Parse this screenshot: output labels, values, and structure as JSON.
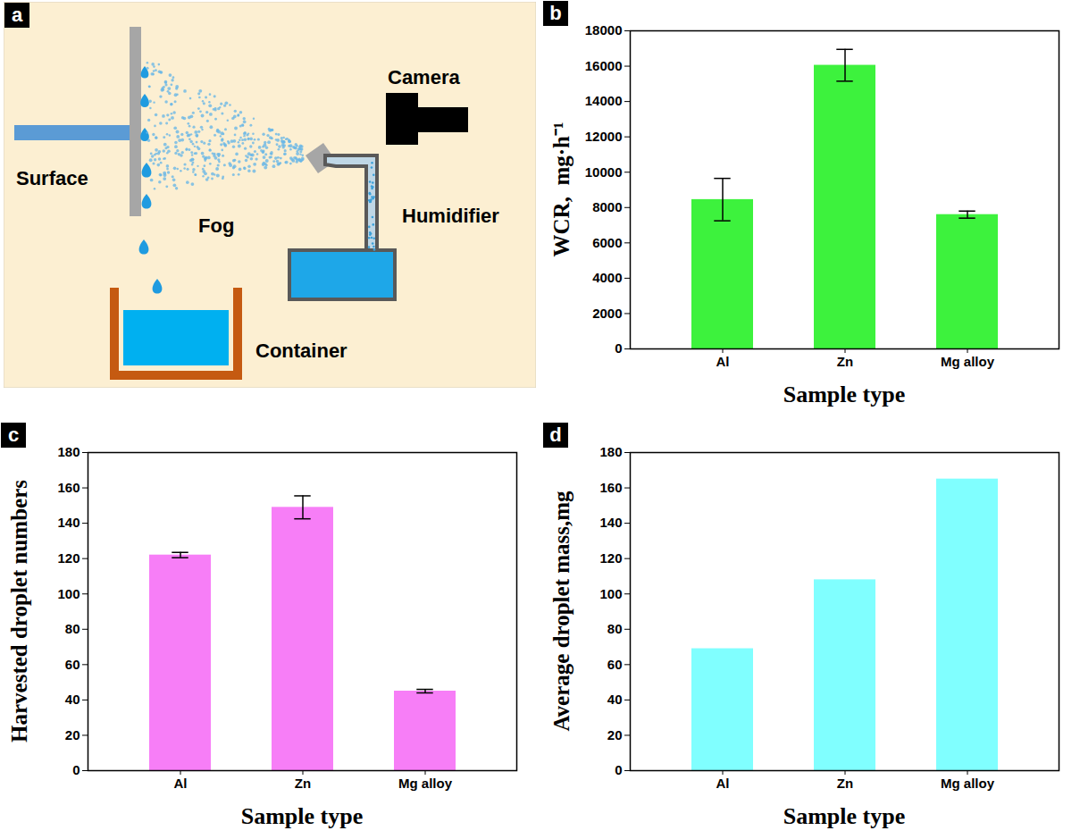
{
  "diagram": {
    "panel": "a",
    "labels": {
      "surface": "Surface",
      "fog": "Fog",
      "camera": "Camera",
      "humidifier": "Humidifier",
      "container": "Container"
    }
  },
  "chart_data": [
    {
      "type": "bar",
      "panel": "b",
      "x_label": "Sample type",
      "y_label": "WCR,  mg·h⁻¹",
      "categories": [
        "Al",
        "Zn",
        "Mg alloy"
      ],
      "values": [
        8450,
        16050,
        7600
      ],
      "errors": [
        1200,
        900,
        200
      ],
      "color": "#3df23d",
      "ylim": [
        0,
        18000
      ],
      "yticks": [
        0,
        2000,
        4000,
        6000,
        8000,
        10000,
        12000,
        14000,
        16000,
        18000
      ],
      "grid": false
    },
    {
      "type": "bar",
      "panel": "c",
      "x_label": "Sample type",
      "y_label": "Harvested droplet numbers",
      "categories": [
        "Al",
        "Zn",
        "Mg alloy"
      ],
      "values": [
        122,
        149,
        45
      ],
      "errors": [
        1.5,
        6.5,
        1
      ],
      "color": "#f77ef7",
      "ylim": [
        0,
        180
      ],
      "yticks": [
        0,
        20,
        40,
        60,
        80,
        100,
        120,
        140,
        160,
        180
      ],
      "grid": false
    },
    {
      "type": "bar",
      "panel": "d",
      "x_label": "Sample type",
      "y_label": "Average droplet mass,mg",
      "categories": [
        "Al",
        "Zn",
        "Mg alloy"
      ],
      "values": [
        69,
        108,
        165
      ],
      "color": "#80ffff",
      "ylim": [
        0,
        180
      ],
      "yticks": [
        0,
        20,
        40,
        60,
        80,
        100,
        120,
        140,
        160,
        180
      ],
      "grid": false
    }
  ]
}
